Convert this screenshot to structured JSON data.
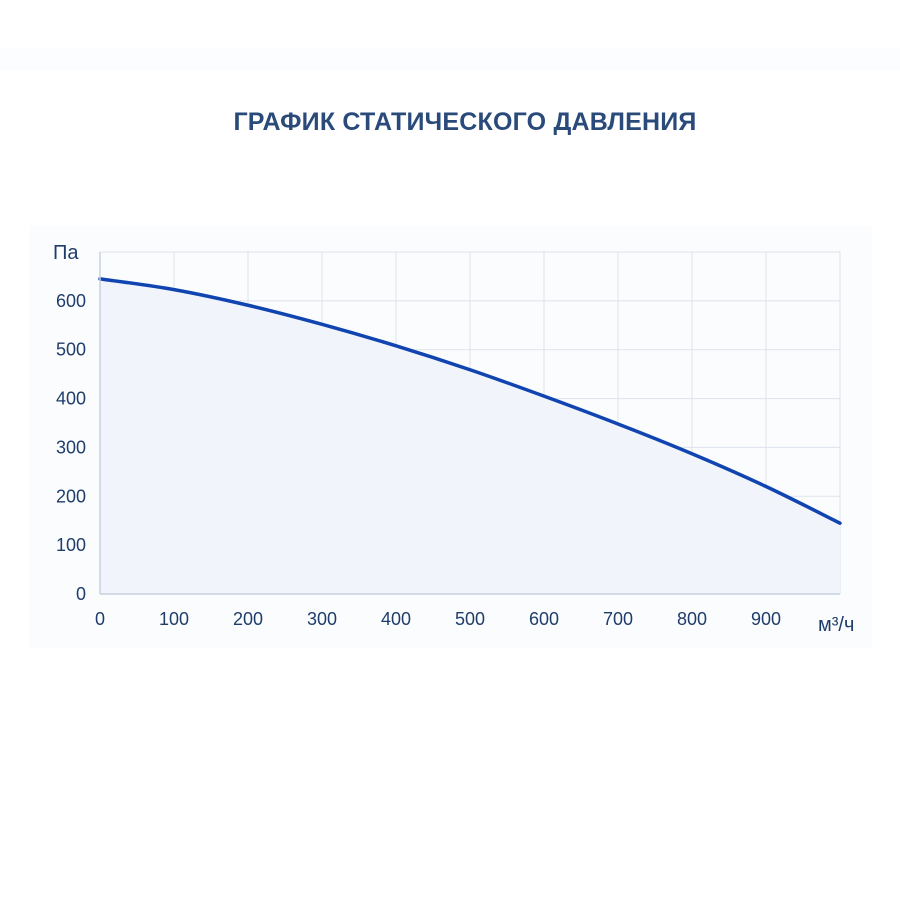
{
  "chart_data": {
    "type": "area",
    "title": "ГРАФИК СТАТИЧЕСКОГО ДАВЛЕНИЯ",
    "xlabel": "м³/ч",
    "ylabel": "Па",
    "xlim": [
      0,
      1000
    ],
    "ylim": [
      0,
      700
    ],
    "x_ticks": [
      0,
      100,
      200,
      300,
      400,
      500,
      600,
      700,
      800,
      900
    ],
    "y_ticks": [
      0,
      100,
      200,
      300,
      400,
      500,
      600
    ],
    "grid": true,
    "series": [
      {
        "x": [
          0,
          100,
          200,
          300,
          400,
          500,
          600,
          700,
          800,
          900,
          1000
        ],
        "y": [
          645,
          623,
          591,
          552,
          508,
          459,
          405,
          348,
          287,
          220,
          145
        ]
      }
    ],
    "colors": {
      "line": "#1044b0",
      "fill": "#f1f5fb",
      "grid": "#dde3ec",
      "axis": "#c8d1de",
      "text": "#1f3d6b",
      "title": "#2a4a7a"
    }
  }
}
